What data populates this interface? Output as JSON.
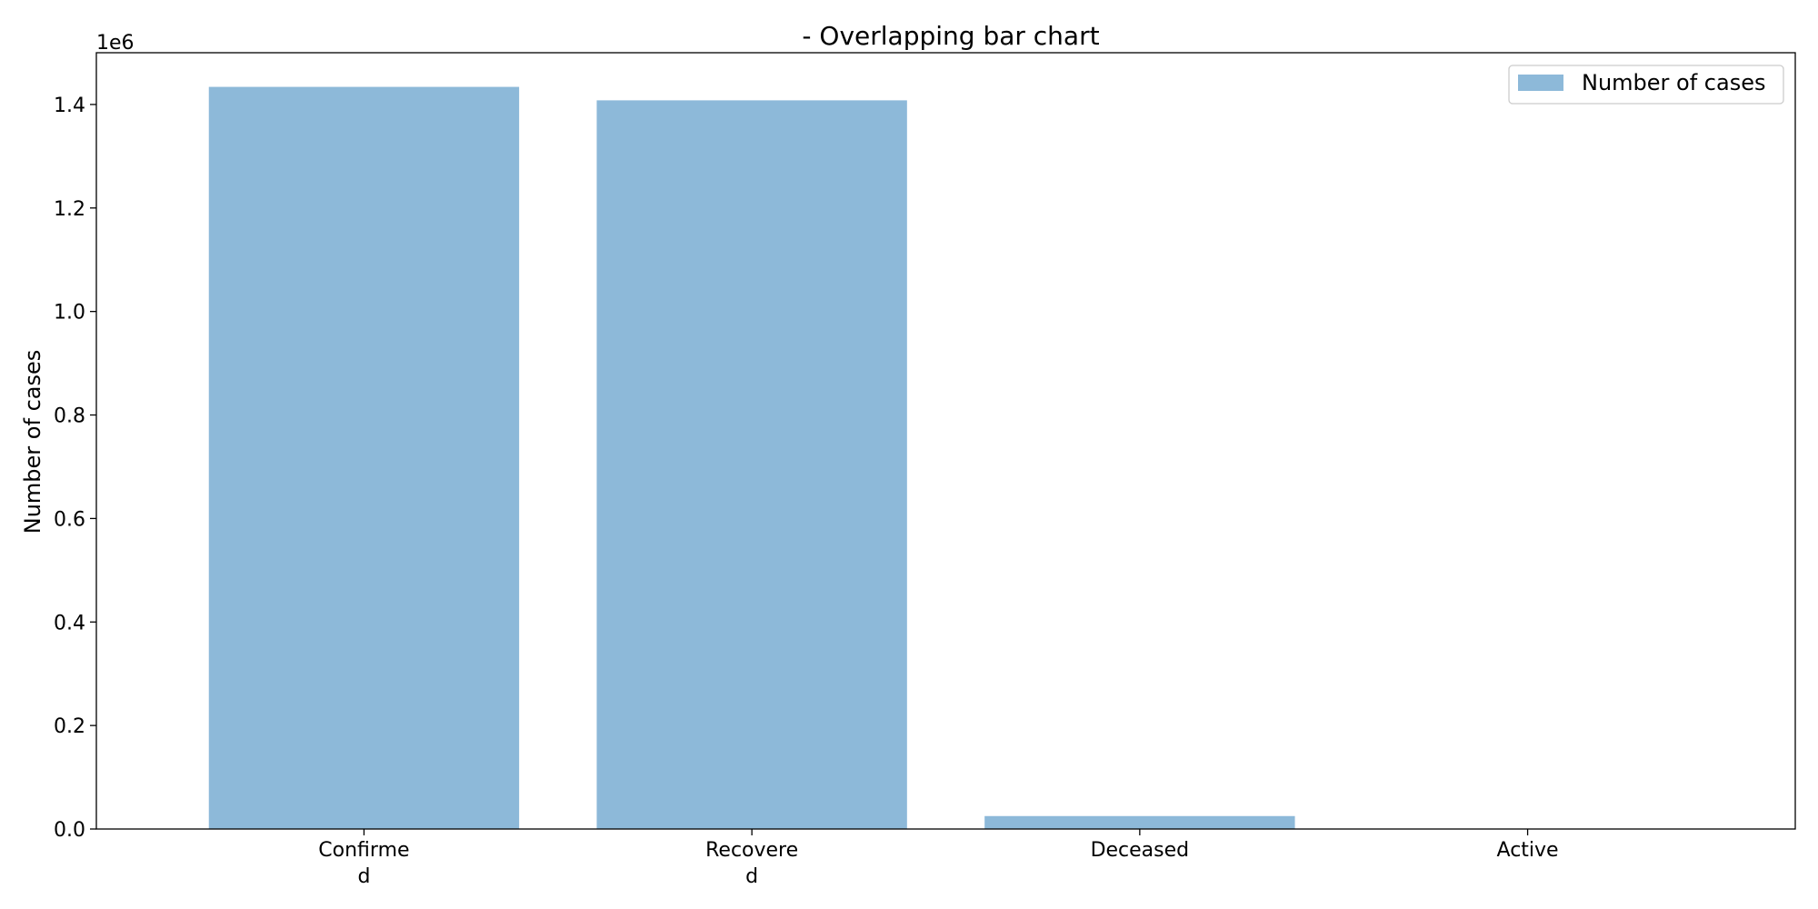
{
  "chart_data": {
    "type": "bar",
    "title": "- Overlapping bar chart",
    "xlabel": "",
    "ylabel": "Number of cases",
    "categories": [
      [
        "Confirme",
        "d"
      ],
      [
        "Recovere",
        "d"
      ],
      [
        "Deceased"
      ],
      [
        "Active"
      ]
    ],
    "series": [
      {
        "name": "Number of cases",
        "values": [
          1434000,
          1408000,
          25000,
          0
        ],
        "color": "#8db9d9"
      }
    ],
    "ylim": [
      0,
      1500000
    ],
    "yticks": [
      0,
      200000,
      400000,
      600000,
      800000,
      1000000,
      1200000,
      1400000
    ],
    "ytick_labels": [
      "0.0",
      "0.2",
      "0.4",
      "0.6",
      "0.8",
      "1.0",
      "1.2",
      "1.4"
    ],
    "y_offset_label": "1e6",
    "grid": false,
    "legend": {
      "placement": "top-right"
    }
  }
}
